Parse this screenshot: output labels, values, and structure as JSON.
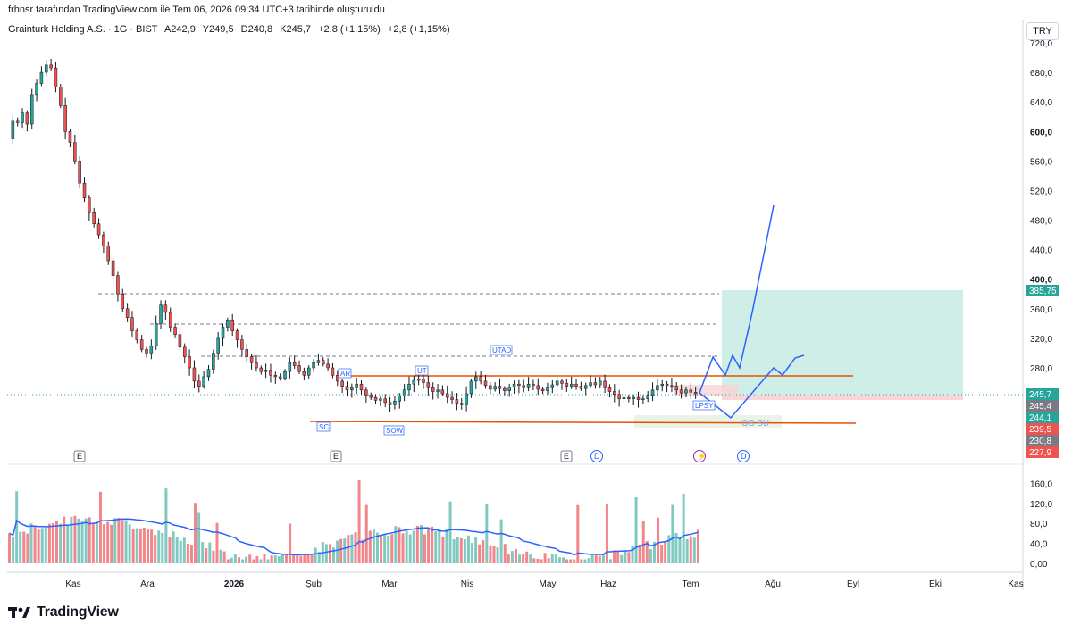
{
  "header": {
    "attribution": "frhnsr tarafından TradingView.com ile Tem 06, 2026 09:34 UTC+3 tarihinde oluşturuldu"
  },
  "legend": {
    "symbol": "Grainturk Holding A.S. · 1G · BIST",
    "open": "A242,9",
    "high": "Y249,5",
    "low": "D240,8",
    "close": "K245,7",
    "change1": "+2,8 (+1,15%)",
    "change2": "+2,8 (+1,15%)"
  },
  "currency": "TRY",
  "brand": "TradingView",
  "colors": {
    "up": "#26a69a",
    "down": "#ef5350",
    "vol_up": "#80c9c0",
    "vol_down": "#f2868a",
    "ma": "#2962ff",
    "orange": "#e65100",
    "target_box": "#cfeee7",
    "stop_box": "#f9d5d5"
  },
  "chart_data": {
    "type": "candlestick",
    "price_axis": {
      "ticks": [
        "720,0",
        "680,0",
        "640,0",
        "600,0",
        "560,0",
        "520,0",
        "480,0",
        "440,0",
        "400,0",
        "360,0",
        "320,0",
        "280,0"
      ],
      "range": [
        220,
        730
      ]
    },
    "price_labels": [
      {
        "text": "385,75",
        "value": 385.75,
        "color": "#26a69a"
      },
      {
        "text": "245,7",
        "value": 245.7,
        "color": "#26a69a"
      },
      {
        "text": "245,4",
        "value": 245.4,
        "color": "#787b86"
      },
      {
        "text": "244,1",
        "value": 244.1,
        "color": "#26a69a"
      },
      {
        "text": "239,5",
        "value": 239.5,
        "color": "#ef5350"
      },
      {
        "text": "230,8",
        "value": 230.8,
        "color": "#787b86"
      },
      {
        "text": "227,9",
        "value": 227.9,
        "color": "#ef5350"
      }
    ],
    "volume_axis": {
      "ticks": [
        "160,0",
        "120,0",
        "80,0",
        "40,0",
        "0,00"
      ],
      "range": [
        0,
        175
      ]
    },
    "time_axis": [
      "Kas",
      "Ara",
      "2026",
      "Şub",
      "Mar",
      "Nis",
      "May",
      "Haz",
      "Tem",
      "Ağu",
      "Eyl",
      "Eki",
      "Kas"
    ],
    "ohlc_path": [
      [
        0,
        590
      ],
      [
        4,
        615
      ],
      [
        8,
        612
      ],
      [
        12,
        625
      ],
      [
        16,
        610
      ],
      [
        20,
        650
      ],
      [
        24,
        665
      ],
      [
        28,
        680
      ],
      [
        31,
        690
      ],
      [
        34,
        686
      ],
      [
        37,
        660
      ],
      [
        40,
        635
      ],
      [
        44,
        600
      ],
      [
        48,
        585
      ],
      [
        52,
        560
      ],
      [
        55,
        530
      ],
      [
        58,
        510
      ],
      [
        62,
        490
      ],
      [
        65,
        475
      ],
      [
        68,
        460
      ],
      [
        71,
        445
      ],
      [
        75,
        425
      ],
      [
        79,
        405
      ],
      [
        83,
        380
      ],
      [
        87,
        360
      ],
      [
        91,
        348
      ],
      [
        94,
        330
      ],
      [
        97,
        318
      ],
      [
        100,
        305
      ],
      [
        103,
        300
      ],
      [
        106,
        310
      ],
      [
        109,
        340
      ],
      [
        113,
        365
      ],
      [
        116,
        355
      ],
      [
        119,
        335
      ],
      [
        122,
        325
      ],
      [
        125,
        308
      ],
      [
        128,
        295
      ],
      [
        131,
        280
      ],
      [
        134,
        262
      ],
      [
        137,
        255
      ],
      [
        140,
        268
      ],
      [
        143,
        278
      ],
      [
        146,
        300
      ],
      [
        149,
        320
      ],
      [
        152,
        335
      ],
      [
        155,
        345
      ],
      [
        158,
        330
      ],
      [
        161,
        318
      ],
      [
        164,
        305
      ],
      [
        167,
        295
      ],
      [
        171,
        287
      ],
      [
        175,
        280
      ],
      [
        179,
        275
      ],
      [
        183,
        277
      ],
      [
        187,
        270
      ],
      [
        191,
        268
      ],
      [
        195,
        266
      ],
      [
        199,
        275
      ],
      [
        203,
        287
      ],
      [
        207,
        283
      ],
      [
        211,
        275
      ],
      [
        215,
        270
      ],
      [
        219,
        280
      ],
      [
        223,
        287
      ],
      [
        227,
        290
      ],
      [
        231,
        285
      ],
      [
        235,
        280
      ],
      [
        239,
        270
      ],
      [
        243,
        262
      ],
      [
        247,
        255
      ],
      [
        251,
        250
      ],
      [
        255,
        253
      ],
      [
        259,
        258
      ],
      [
        263,
        250
      ],
      [
        267,
        243
      ],
      [
        271,
        240
      ],
      [
        275,
        236
      ],
      [
        279,
        238
      ],
      [
        283,
        233
      ],
      [
        287,
        230
      ],
      [
        291,
        235
      ],
      [
        295,
        242
      ],
      [
        299,
        250
      ],
      [
        303,
        258
      ],
      [
        307,
        263
      ],
      [
        311,
        265
      ],
      [
        315,
        260
      ],
      [
        319,
        253
      ],
      [
        323,
        248
      ],
      [
        327,
        250
      ],
      [
        331,
        245
      ],
      [
        335,
        240
      ],
      [
        339,
        237
      ],
      [
        343,
        232
      ],
      [
        347,
        230
      ],
      [
        351,
        245
      ],
      [
        355,
        262
      ],
      [
        359,
        268
      ],
      [
        363,
        262
      ],
      [
        367,
        256
      ],
      [
        371,
        251
      ],
      [
        375,
        255
      ],
      [
        379,
        252
      ],
      [
        383,
        249
      ],
      [
        387,
        254
      ],
      [
        391,
        258
      ],
      [
        395,
        256
      ],
      [
        399,
        253
      ],
      [
        403,
        258
      ],
      [
        407,
        256
      ],
      [
        411,
        251
      ],
      [
        415,
        249
      ],
      [
        419,
        253
      ],
      [
        423,
        257
      ],
      [
        427,
        262
      ],
      [
        431,
        259
      ],
      [
        435,
        255
      ],
      [
        439,
        258
      ],
      [
        443,
        255
      ],
      [
        447,
        252
      ],
      [
        451,
        256
      ],
      [
        455,
        260
      ],
      [
        459,
        257
      ],
      [
        463,
        262
      ],
      [
        467,
        253
      ],
      [
        471,
        248
      ],
      [
        475,
        244
      ],
      [
        479,
        238
      ],
      [
        483,
        240
      ],
      [
        487,
        238
      ],
      [
        491,
        240
      ],
      [
        495,
        237
      ],
      [
        499,
        238
      ],
      [
        503,
        243
      ],
      [
        507,
        250
      ],
      [
        511,
        256
      ],
      [
        515,
        258
      ],
      [
        519,
        256
      ],
      [
        523,
        255
      ],
      [
        527,
        250
      ],
      [
        531,
        246
      ],
      [
        535,
        250
      ],
      [
        539,
        247
      ],
      [
        543,
        245
      ]
    ],
    "volume_fraction_heights": [
      0.21,
      0.14,
      0.23,
      0.12,
      0.24,
      0.14,
      0.29,
      0.34,
      0.57,
      0.28,
      0.36,
      0.19,
      0.44,
      0.3,
      0.38,
      0.23,
      0.49,
      0.35,
      0.56,
      0.4,
      0.29,
      0.21,
      0.43,
      0.32,
      0.26,
      0.37,
      0.33,
      0.51,
      0.3,
      0.23,
      0.3,
      0.22,
      0.27,
      0.2,
      0.4,
      0.32
    ]
  }
}
